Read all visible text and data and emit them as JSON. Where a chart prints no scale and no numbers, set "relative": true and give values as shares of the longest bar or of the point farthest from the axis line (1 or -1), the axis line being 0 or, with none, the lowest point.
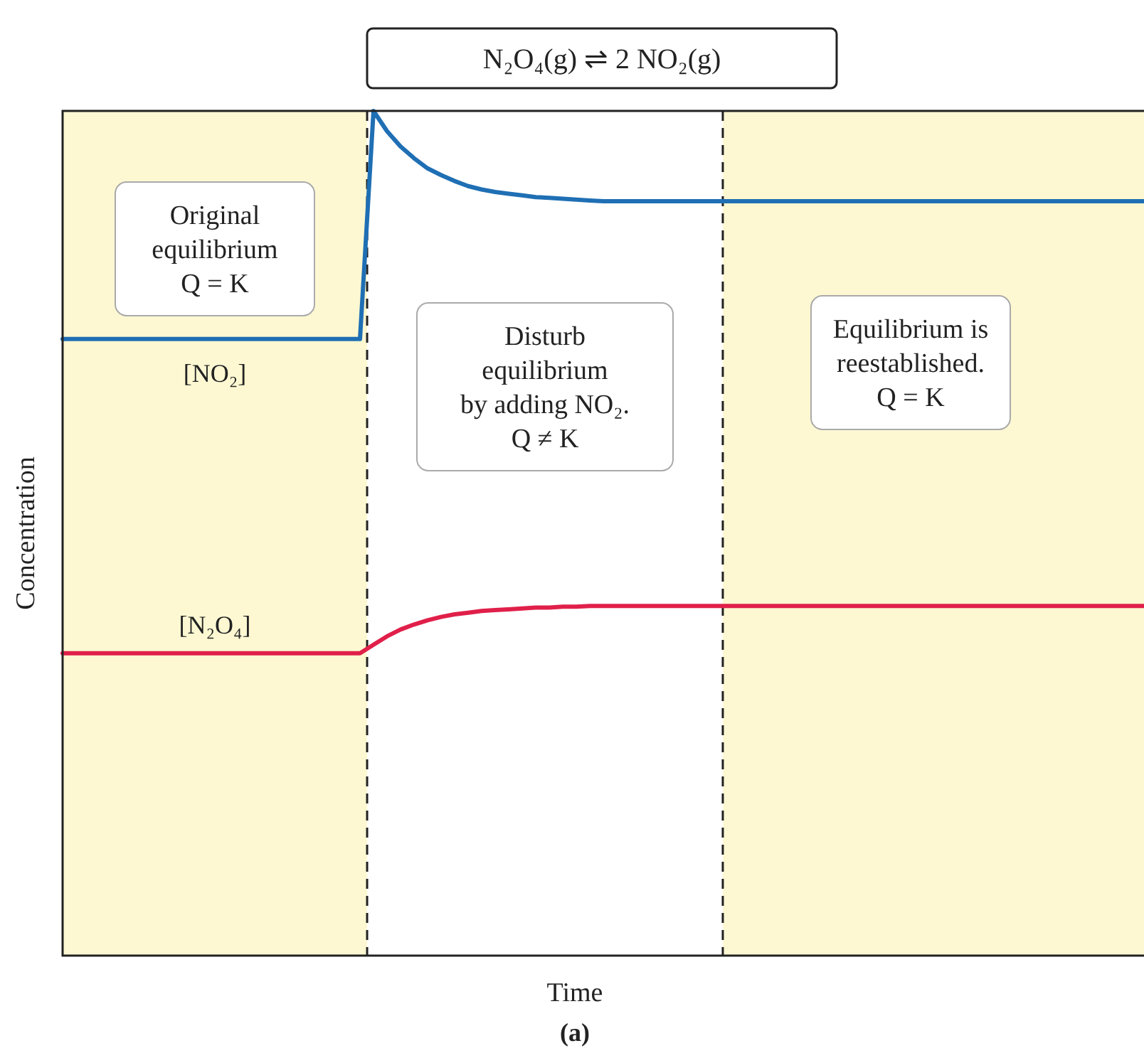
{
  "chart_data": {
    "type": "line",
    "title": "N₂O₄(g) ⇌ 2 NO₂(g)",
    "xlabel": "Time",
    "ylabel": "Concentration",
    "relative": true,
    "legend": false,
    "marker": "none",
    "line_style": "solid",
    "categories": [
      null,
      null,
      null,
      null,
      null,
      null,
      null,
      null,
      null,
      null,
      null,
      null,
      null,
      null,
      null,
      null,
      null,
      null,
      null,
      null,
      null,
      null,
      null,
      null,
      null,
      null,
      null,
      null,
      null,
      null,
      null,
      null,
      null,
      null,
      null,
      null,
      null,
      null,
      null,
      null,
      null,
      null,
      null,
      null,
      null,
      null,
      null,
      null,
      null,
      null,
      null,
      null,
      null,
      null,
      null,
      null,
      null,
      null,
      null,
      null,
      null,
      null,
      null,
      null,
      null,
      null,
      null,
      null,
      null,
      null,
      null,
      null,
      null,
      null,
      null,
      null,
      null,
      null,
      null,
      null,
      null
    ],
    "series": [
      {
        "name": "[NO₂]",
        "color": "#1f6fb4",
        "values": [
          0.73,
          0.73,
          0.73,
          0.73,
          0.73,
          0.73,
          0.73,
          0.73,
          0.73,
          0.73,
          0.73,
          0.73,
          0.73,
          0.73,
          0.73,
          0.73,
          0.73,
          0.73,
          0.73,
          0.73,
          0.73,
          0.73,
          0.73,
          1.0,
          0.976,
          0.958,
          0.944,
          0.932,
          0.924,
          0.917,
          0.911,
          0.907,
          0.904,
          0.902,
          0.9,
          0.898,
          0.897,
          0.896,
          0.895,
          0.894,
          0.893,
          0.893,
          0.893,
          0.893,
          0.893,
          0.893,
          0.893,
          0.893,
          0.893,
          0.893,
          0.893,
          0.893,
          0.893,
          0.893,
          0.893,
          0.893,
          0.893,
          0.893,
          0.893,
          0.893,
          0.893,
          0.893,
          0.893,
          0.893,
          0.893,
          0.893,
          0.893,
          0.893,
          0.893,
          0.893,
          0.893,
          0.893,
          0.893,
          0.893,
          0.893,
          0.893,
          0.893,
          0.893,
          0.893,
          0.893,
          0.893
        ]
      },
      {
        "name": "[N₂O₄]",
        "color": "#e0204a",
        "values": [
          0.358,
          0.358,
          0.358,
          0.358,
          0.358,
          0.358,
          0.358,
          0.358,
          0.358,
          0.358,
          0.358,
          0.358,
          0.358,
          0.358,
          0.358,
          0.358,
          0.358,
          0.358,
          0.358,
          0.358,
          0.358,
          0.358,
          0.358,
          0.368,
          0.378,
          0.386,
          0.392,
          0.397,
          0.401,
          0.404,
          0.406,
          0.408,
          0.409,
          0.41,
          0.411,
          0.412,
          0.412,
          0.413,
          0.413,
          0.414,
          0.414,
          0.414,
          0.414,
          0.414,
          0.414,
          0.414,
          0.414,
          0.414,
          0.414,
          0.414,
          0.414,
          0.414,
          0.414,
          0.414,
          0.414,
          0.414,
          0.414,
          0.414,
          0.414,
          0.414,
          0.414,
          0.414,
          0.414,
          0.414,
          0.414,
          0.414,
          0.414,
          0.414,
          0.414,
          0.414,
          0.414,
          0.414,
          0.414,
          0.414,
          0.414,
          0.414,
          0.414,
          0.414,
          0.414,
          0.414,
          0.414
        ]
      }
    ],
    "annotations": [
      "Original equilibrium Q = K",
      "Disturb equilibrium by adding NO₂. Q ≠ K",
      "Equilibrium is reestablished. Q = K",
      "(a)"
    ]
  }
}
